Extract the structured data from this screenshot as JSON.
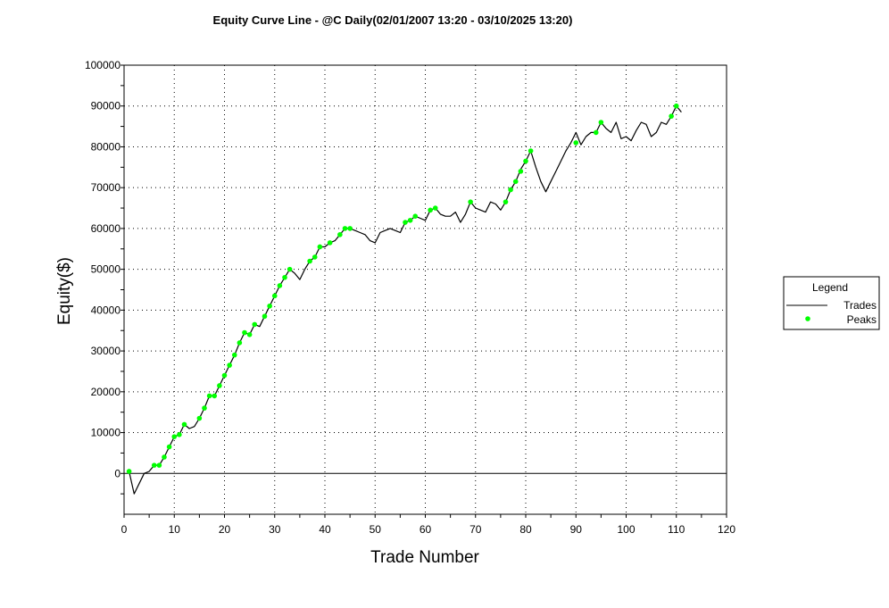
{
  "chart_data": {
    "type": "line",
    "title": "Equity Curve Line - @C Daily(02/01/2007 13:20 - 03/10/2025 13:20)",
    "xlabel": "Trade Number",
    "ylabel": "Equity($)",
    "xlim": [
      0,
      120
    ],
    "ylim": [
      -10000,
      100000
    ],
    "x_ticks": [
      0,
      10,
      20,
      30,
      40,
      50,
      60,
      70,
      80,
      90,
      100,
      110,
      120
    ],
    "y_ticks": [
      0,
      10000,
      20000,
      30000,
      40000,
      50000,
      60000,
      70000,
      80000,
      90000,
      100000
    ],
    "grid": true,
    "legend": {
      "title": "Legend",
      "placement": "right",
      "entries": [
        "Trades",
        "Peaks"
      ]
    },
    "colors": {
      "trades": "#000000",
      "peaks": "#00ff00"
    },
    "series": [
      {
        "name": "Trades",
        "x": [
          1,
          2,
          3,
          4,
          5,
          6,
          7,
          8,
          9,
          10,
          11,
          12,
          13,
          14,
          15,
          16,
          17,
          18,
          19,
          20,
          21,
          22,
          23,
          24,
          25,
          26,
          27,
          28,
          29,
          30,
          31,
          32,
          33,
          34,
          35,
          36,
          37,
          38,
          39,
          40,
          41,
          42,
          43,
          44,
          45,
          46,
          47,
          48,
          49,
          50,
          51,
          52,
          53,
          54,
          55,
          56,
          57,
          58,
          59,
          60,
          61,
          62,
          63,
          64,
          65,
          66,
          67,
          68,
          69,
          70,
          71,
          72,
          73,
          74,
          75,
          76,
          77,
          78,
          79,
          80,
          81,
          82,
          83,
          84,
          85,
          86,
          87,
          88,
          89,
          90,
          91,
          92,
          93,
          94,
          95,
          96,
          97,
          98,
          99,
          100,
          101,
          102,
          103,
          104,
          105,
          106,
          107,
          108,
          109,
          110,
          111
        ],
        "y": [
          500,
          -5000,
          -2500,
          0,
          500,
          2000,
          2000,
          4000,
          6500,
          9000,
          9500,
          12000,
          11000,
          11500,
          13500,
          16000,
          19000,
          19000,
          21500,
          24000,
          26500,
          29000,
          32000,
          34500,
          34000,
          36500,
          36000,
          38500,
          41000,
          43500,
          46000,
          48000,
          50000,
          49000,
          47500,
          50000,
          52000,
          53000,
          55500,
          55500,
          56500,
          57000,
          58500,
          60000,
          60000,
          59500,
          59000,
          58500,
          57000,
          56500,
          59000,
          59500,
          60000,
          59500,
          59000,
          61500,
          62000,
          63000,
          62500,
          62000,
          64500,
          65000,
          63500,
          63000,
          63000,
          64000,
          61500,
          63500,
          66500,
          65000,
          64500,
          64000,
          66500,
          66000,
          64500,
          66500,
          69500,
          71500,
          74500,
          76500,
          79000,
          75000,
          71500,
          69000,
          71500,
          74000,
          76500,
          79000,
          81000,
          83500,
          80500,
          82500,
          83500,
          83500,
          86000,
          84500,
          83500,
          86000,
          82000,
          82500,
          81500,
          84000,
          86000,
          85500,
          82500,
          83500,
          86000,
          85500,
          87500,
          90000,
          88500
        ]
      },
      {
        "name": "Peaks",
        "x": [
          1,
          6,
          7,
          8,
          9,
          10,
          11,
          12,
          15,
          16,
          17,
          18,
          19,
          20,
          21,
          22,
          23,
          24,
          25,
          26,
          28,
          29,
          30,
          31,
          32,
          33,
          37,
          38,
          39,
          41,
          43,
          44,
          45,
          56,
          57,
          58,
          61,
          62,
          69,
          76,
          77,
          78,
          79,
          80,
          81,
          90,
          94,
          95,
          109,
          110
        ],
        "y": [
          500,
          2000,
          2000,
          4000,
          6500,
          9000,
          9500,
          12000,
          13500,
          16000,
          19000,
          19000,
          21500,
          24000,
          26500,
          29000,
          32000,
          34500,
          34000,
          36500,
          38500,
          41000,
          43500,
          46000,
          48000,
          50000,
          52000,
          53000,
          55500,
          56500,
          58500,
          60000,
          60000,
          61500,
          62000,
          63000,
          64500,
          65000,
          66500,
          66500,
          69500,
          71500,
          74000,
          76500,
          79000,
          81000,
          83500,
          86000,
          87500,
          90000
        ]
      }
    ]
  }
}
